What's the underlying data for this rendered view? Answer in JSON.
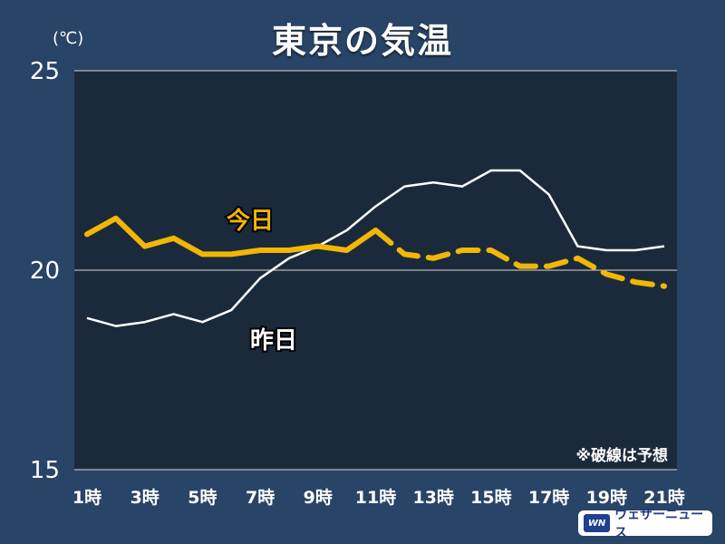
{
  "title": "東京の気温",
  "unit": "(℃)",
  "chart_data": {
    "type": "line",
    "ylim": [
      15,
      25
    ],
    "yticks": [
      "25",
      "20",
      "15"
    ],
    "x": [
      1,
      2,
      3,
      4,
      5,
      6,
      7,
      8,
      9,
      10,
      11,
      12,
      13,
      14,
      15,
      16,
      17,
      18,
      19,
      20,
      21
    ],
    "xtick_labels": [
      "1時",
      "3時",
      "5時",
      "7時",
      "9時",
      "11時",
      "13時",
      "15時",
      "17時",
      "19時",
      "21時"
    ],
    "series": [
      {
        "name": "今日",
        "color": "#f2b705",
        "values": [
          20.9,
          21.3,
          20.6,
          20.8,
          20.4,
          20.4,
          20.5,
          20.5,
          20.6,
          20.5,
          21.0,
          20.4,
          20.3,
          20.5,
          20.5,
          20.1,
          20.1,
          20.3,
          19.9,
          19.7,
          19.6
        ],
        "forecast_from_x": 11
      },
      {
        "name": "昨日",
        "color": "#ffffff",
        "values": [
          18.8,
          18.6,
          18.7,
          18.9,
          18.7,
          19.0,
          19.8,
          20.3,
          20.6,
          21.0,
          21.6,
          22.1,
          22.2,
          22.1,
          22.5,
          22.5,
          21.9,
          20.6,
          20.5,
          20.5,
          20.6
        ]
      }
    ],
    "annotation": "※破線は予想"
  },
  "brand": {
    "icon": "WN",
    "text": "ウェザーニュース"
  }
}
